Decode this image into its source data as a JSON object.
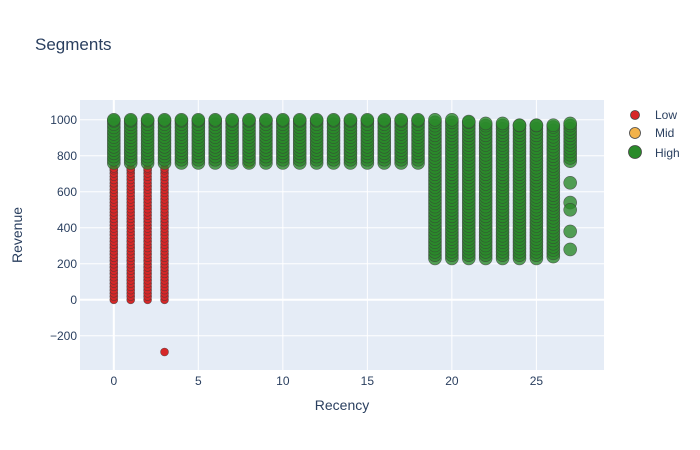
{
  "chart_data": {
    "type": "scatter",
    "title": "Segments",
    "xlabel": "Recency",
    "ylabel": "Revenue",
    "xlim": [
      -2,
      29
    ],
    "ylim": [
      -390,
      1110
    ],
    "x_ticks": [
      0,
      5,
      10,
      15,
      20,
      25
    ],
    "y_ticks": [
      -200,
      0,
      200,
      400,
      600,
      800,
      1000
    ],
    "grid": true,
    "legend_position": "top-right",
    "series": [
      {
        "name": "Low",
        "color": "#d62728",
        "marker_size": "small",
        "columns": [
          {
            "x": 0,
            "y_from": 0,
            "y_to": 730
          },
          {
            "x": 1,
            "y_from": 0,
            "y_to": 730
          },
          {
            "x": 2,
            "y_from": 0,
            "y_to": 730
          },
          {
            "x": 3,
            "y_from": 0,
            "y_to": 730
          }
        ],
        "points": [
          {
            "x": 3,
            "y": -290
          }
        ]
      },
      {
        "name": "Mid",
        "color": "#f2b24a",
        "marker_size": "medium",
        "columns": [],
        "points": [
          {
            "x": 8,
            "y": 990
          },
          {
            "x": 10,
            "y": 985
          },
          {
            "x": 8,
            "y": 760
          }
        ]
      },
      {
        "name": "High",
        "color": "#2a8a2a",
        "marker_size": "large",
        "columns": [
          {
            "x": 0,
            "y_from": 760,
            "y_to": 1000
          },
          {
            "x": 1,
            "y_from": 760,
            "y_to": 1000
          },
          {
            "x": 2,
            "y_from": 760,
            "y_to": 1000
          },
          {
            "x": 3,
            "y_from": 760,
            "y_to": 1000
          },
          {
            "x": 4,
            "y_from": 760,
            "y_to": 1000
          },
          {
            "x": 5,
            "y_from": 760,
            "y_to": 1000
          },
          {
            "x": 6,
            "y_from": 760,
            "y_to": 1000
          },
          {
            "x": 7,
            "y_from": 760,
            "y_to": 1000
          },
          {
            "x": 8,
            "y_from": 760,
            "y_to": 1000
          },
          {
            "x": 9,
            "y_from": 760,
            "y_to": 1000
          },
          {
            "x": 10,
            "y_from": 760,
            "y_to": 1000
          },
          {
            "x": 11,
            "y_from": 760,
            "y_to": 1000
          },
          {
            "x": 12,
            "y_from": 760,
            "y_to": 1000
          },
          {
            "x": 13,
            "y_from": 760,
            "y_to": 1000
          },
          {
            "x": 14,
            "y_from": 760,
            "y_to": 1000
          },
          {
            "x": 15,
            "y_from": 760,
            "y_to": 1000
          },
          {
            "x": 16,
            "y_from": 760,
            "y_to": 1000
          },
          {
            "x": 17,
            "y_from": 760,
            "y_to": 1000
          },
          {
            "x": 18,
            "y_from": 760,
            "y_to": 1000
          },
          {
            "x": 19,
            "y_from": 230,
            "y_to": 1000
          },
          {
            "x": 20,
            "y_from": 230,
            "y_to": 1000
          },
          {
            "x": 21,
            "y_from": 230,
            "y_to": 990
          },
          {
            "x": 22,
            "y_from": 230,
            "y_to": 980
          },
          {
            "x": 23,
            "y_from": 230,
            "y_to": 980
          },
          {
            "x": 24,
            "y_from": 230,
            "y_to": 970
          },
          {
            "x": 25,
            "y_from": 230,
            "y_to": 970
          },
          {
            "x": 26,
            "y_from": 240,
            "y_to": 970
          },
          {
            "x": 27,
            "y_from": 770,
            "y_to": 980
          }
        ],
        "points": [
          {
            "x": 27,
            "y": 650
          },
          {
            "x": 27,
            "y": 540
          },
          {
            "x": 27,
            "y": 500
          },
          {
            "x": 27,
            "y": 380
          },
          {
            "x": 27,
            "y": 280
          }
        ]
      }
    ]
  }
}
